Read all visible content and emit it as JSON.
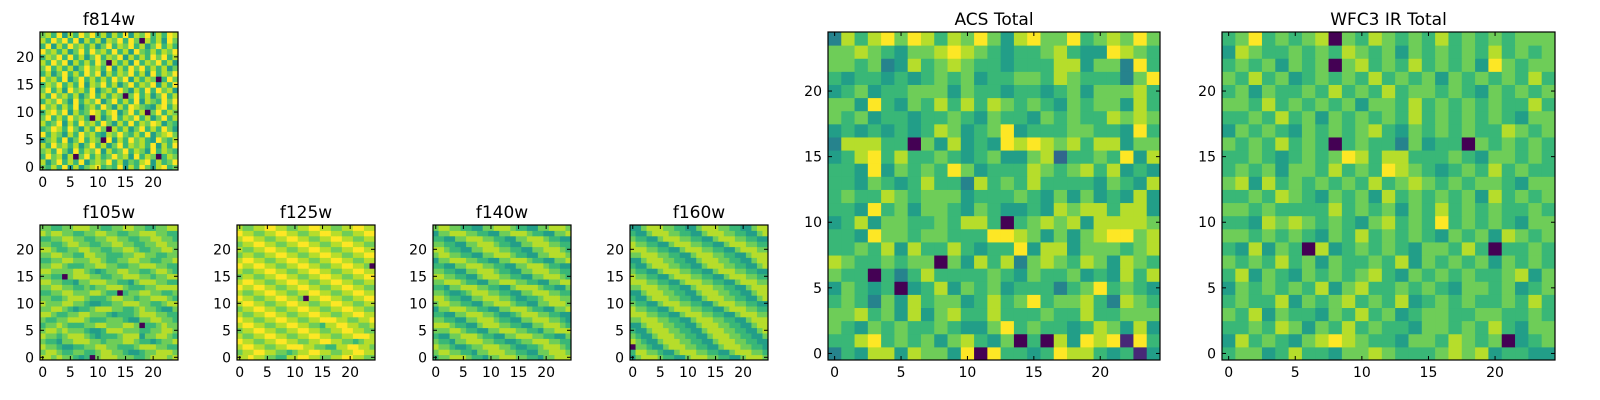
{
  "chart_data": [
    {
      "type": "heatmap",
      "id": "f814w",
      "title": "f814w",
      "colormap": "viridis",
      "origin": "lower",
      "xticks": [
        0,
        5,
        10,
        15,
        20
      ],
      "yticks": [
        0,
        5,
        10,
        15,
        20
      ],
      "xlim": [
        -0.5,
        24.5
      ],
      "ylim": [
        -0.5,
        24.5
      ],
      "value_scale": "digits 0-9 normalized to 0-1",
      "rows": [
        "7686958578967695869758967",
        "8579686957879685768958679",
        "6978580796867978596870687",
        "7869759687958679687596876",
        "8697868579685796878695869",
        "5786957968709586978659768",
        "9687586978658797686957897",
        "6798697586970868579686975",
        "8679586978697586968798576",
        "7968697860857968796857968",
        "6897958679868957968079687",
        "9786869578697586987658968",
        "6879759687957968695876979",
        "8697868579686870796857968",
        "7968597869578697586969785",
        "6879686958796857968795869",
        "9786957968686979586870697",
        "6857968697958687968596879",
        "7968685797869586979686857",
        "8697958686970868596879685",
        "6879696857968795868697968",
        "9786857969786968597686879",
        "6958697868579687968579686",
        "8697969586858796970868597",
        "7869586979685869587968698"
      ]
    },
    {
      "type": "heatmap",
      "id": "f105w",
      "title": "f105w",
      "colormap": "viridis",
      "origin": "lower",
      "xticks": [
        0,
        5,
        10,
        15,
        20
      ],
      "yticks": [
        0,
        5,
        10,
        15,
        20
      ],
      "xlim": [
        -0.5,
        24.5
      ],
      "ylim": [
        -0.5,
        24.5
      ],
      "rows": [
        "8878776560788877766788878",
        "7887667766788776556778887",
        "8776556677887766678887766",
        "7665778887767778876656778",
        "8776788876566678885778876",
        "7887877765568887776677887",
        "6778766677887778870667877",
        "7667788876667776557788776",
        "8876677887776566678887766",
        "7788765667888776678776557",
        "8777887765566778887766788",
        "7766788876667887767788876",
        "6677887778876606778877667",
        "7788776676778887666778888",
        "8877665778887766578887766",
        "7766078887766778887767788",
        "8877778876567788776678876",
        "7788766677887766778887766",
        "6677887778876677887766778",
        "7788776688776667788776677",
        "8876677887766778876677887",
        "7766788776677887766778877",
        "6677887766778877667788776",
        "8788776677887766778887766",
        "7766778887766778877667788"
      ]
    },
    {
      "type": "heatmap",
      "id": "f125w",
      "title": "f125w",
      "colormap": "viridis",
      "origin": "lower",
      "xticks": [
        0,
        5,
        10,
        15,
        20
      ],
      "yticks": [
        0,
        5,
        10,
        15,
        20
      ],
      "xlim": [
        -0.5,
        24.5
      ],
      "ylim": [
        -0.5,
        24.5
      ],
      "rows": [
        "8898877668899887788998877",
        "7889988776788998877889988",
        "8998877889998877668899887",
        "9887788998877889988776788",
        "8778899887788998877889998",
        "7889988778899887788998877",
        "8998877889988776889988778",
        "9887788998877889998877889",
        "8778899887788998877889988",
        "7889988778899887788998877",
        "8998877889988778899887788",
        "9887788998870889988778899",
        "8778899887788998877889988",
        "9889988778899887788998877",
        "8998877889988778899887788",
        "7887788998877889988778899",
        "8778899887788998877889988",
        "9889988778899887788998870",
        "8998877889988778899887788",
        "7887788998877889988778899",
        "8778899887788998877889988",
        "7889988778899887788998877",
        "8998877889988778899887788",
        "9887788998877889988778899",
        "8778899887788998877889988"
      ]
    },
    {
      "type": "heatmap",
      "id": "f140w",
      "title": "f140w",
      "colormap": "viridis",
      "origin": "lower",
      "xticks": [
        0,
        5,
        10,
        15,
        20
      ],
      "yticks": [
        0,
        5,
        10,
        15,
        20
      ],
      "xlim": [
        -0.5,
        24.5
      ],
      "ylim": [
        -0.5,
        24.5
      ],
      "rows": [
        "6778887665778887766577888",
        "7887766577888776655778887",
        "8776556778887765566788876",
        "7665778887766556778887766",
        "6557788876655778887766557",
        "7778876655778887766577888",
        "8887665578887766557788876",
        "7766557788876655778887765",
        "6655778887765567888776655",
        "5778887766557788876655778",
        "7887766557788876655778887",
        "8876655778887765566788877",
        "7765567888776655778887766",
        "6657788877665578888766557",
        "7788876655778887766557788",
        "8877665578887766557788876",
        "7766557788876655778887766",
        "6655778887766557788876655",
        "5778887766557788876655778",
        "7887766557788876655778887",
        "8876655778887766557788876",
        "7766557788876655778887766",
        "6655778887766557788876655",
        "5778887766557788876655778",
        "7887766557788876655778887"
      ]
    },
    {
      "type": "heatmap",
      "id": "f160w",
      "title": "f160w",
      "colormap": "viridis",
      "origin": "lower",
      "xticks": [
        0,
        5,
        10,
        15,
        20
      ],
      "yticks": [
        0,
        5,
        10,
        15,
        20
      ],
      "xlim": [
        -0.5,
        24.5
      ],
      "ylim": [
        -0.5,
        24.5
      ],
      "rows": [
        "5788876655788877665578887",
        "6887765578887766557888776",
        "0776557888776655788877665",
        "8765578887766557888776655",
        "7655788877665578887766557",
        "6557888776655788877665578",
        "5578887766557888776655788",
        "7788877665578887766557888",
        "8887766557888776655788877",
        "8776655788877665578887766",
        "7665578887766557888776655",
        "6557888776655788877665578",
        "5578887766557888776655788",
        "7788877665578887766557888",
        "8887766557888776655788877",
        "8776655788877665578887766",
        "7665578887766557888776655",
        "6557888776655788877665578",
        "5578887766557888776655788",
        "7788877665578887766557888",
        "8887766557888776655788877",
        "8776655788877665578887766",
        "7665578887766557888776655",
        "6557888776655788877665578",
        "5578887766557888776655788"
      ]
    },
    {
      "type": "heatmap",
      "id": "acs",
      "title": "ACS Total",
      "colormap": "viridis",
      "origin": "lower",
      "xticks": [
        0,
        5,
        10,
        15,
        20
      ],
      "yticks": [
        0,
        5,
        10,
        15,
        20
      ],
      "xlim": [
        -0.5,
        24.5
      ],
      "ylim": [
        -0.5,
        24.5
      ],
      "rows": [
        "4658858775909665698865615",
        "6689676757865706085989196",
        "7657676676557967665687585",
        "7786758578668666766866777",
        "6764758677568679677864876",
        "5765605685767566646796765",
        "7660646866667657667565868",
        "8766767707586847876875876",
        "6676858668656695885777678",
        "6659776776669987575789978",
        "5685776676886067878588887",
        "6659675776576556587886885",
        "6766876777566676575756585",
        "6657656866486768666657658",
        "6659576769756668767868565",
        "5689686676567557836676958",
        "4888660758565989878688577",
        "5656565687567956667766596",
        "7675665667657665767668787",
        "7759657686868767657677586",
        "5675667775766566567577786",
        "6566565676756677687666479",
        "7767458678766566688577496",
        "7787657789876566786559876",
        "4868979868797589779678797"
      ]
    },
    {
      "type": "heatmap",
      "id": "wfc3",
      "title": "WFC3 IR Total",
      "colormap": "viridis",
      "origin": "lower",
      "xticks": [
        0,
        5,
        10,
        15,
        20
      ],
      "yticks": [
        0,
        5,
        10,
        15,
        20
      ],
      "xlim": [
        -0.5,
        24.5
      ],
      "ylim": [
        -0.5,
        24.5
      ],
      "rows": [
        "6775686657787666787856655",
        "5867657898766577687670567",
        "6676875768676657767686577",
        "7685766576867567766776676",
        "6766857678676856767667686",
        "5767676857866767657767567",
        "6857657676786576767667857",
        "7676867576676857676757676",
        "6585760856767657768606676",
        "7767676576867676576758767",
        "6658787676578676967676577",
        "7767666686767576867676676",
        "6676876576758676767586767",
        "7858676767686787676776577",
        "6767577686769876567686766",
        "6676567679868866676577676",
        "7676867606766475660767676",
        "5767657676786576767668767",
        "6676867576767686767676577",
        "7768676767577686767676686",
        "6757667686768677676576767",
        "7686756767686767576767686",
        "6767576707867686767597677",
        "5876676768767576767686767",
        "6796767807687676867676777"
      ]
    }
  ]
}
